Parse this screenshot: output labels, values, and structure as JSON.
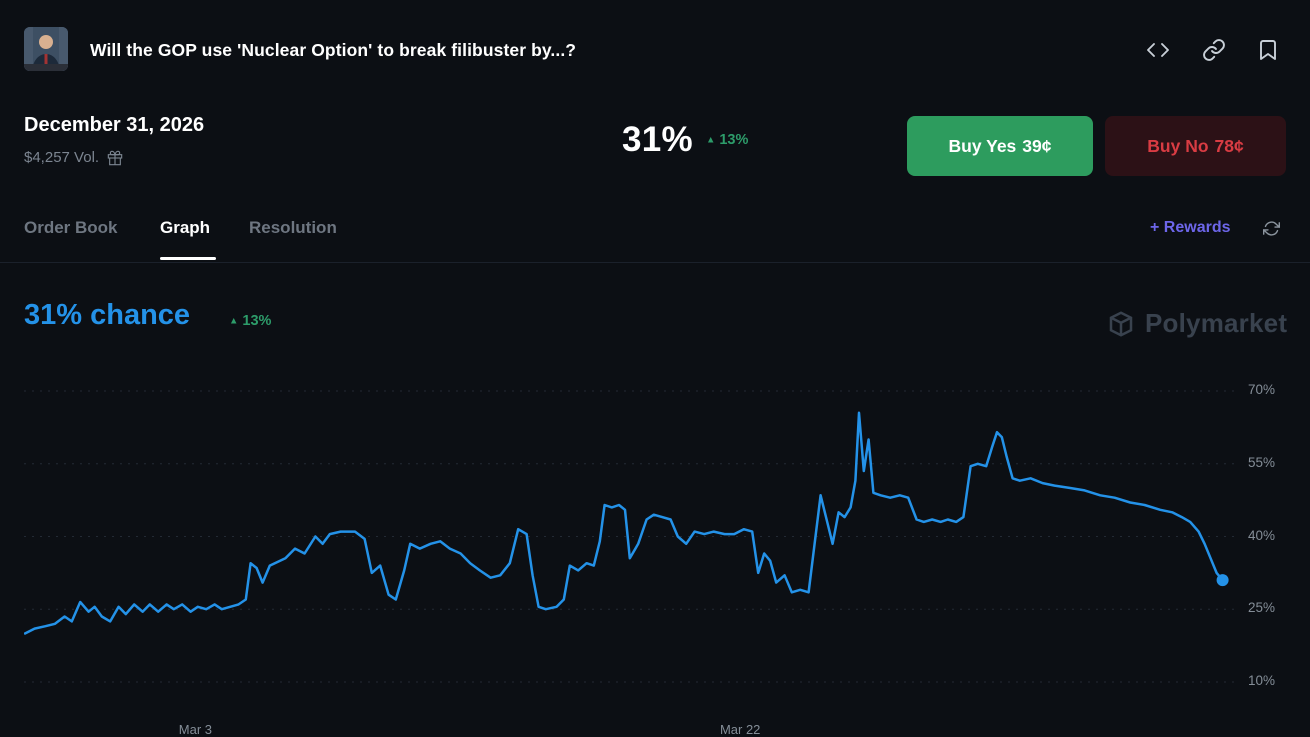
{
  "header": {
    "title": "Will the GOP use 'Nuclear Option' to break filibuster by...?",
    "icons": [
      "embed-icon",
      "copy-link-icon",
      "bookmark-icon"
    ]
  },
  "market": {
    "date": "December 31, 2026",
    "volume": "$4,257 Vol.",
    "chance": "31%",
    "change": "13%",
    "buy_yes": {
      "label": "Buy Yes",
      "price": "39¢"
    },
    "buy_no": {
      "label": "Buy No",
      "price": "78¢"
    }
  },
  "tabs": {
    "order_book": "Order Book",
    "graph": "Graph",
    "resolution": "Resolution",
    "active_tab": "Graph"
  },
  "rewards_label": "+ Rewards",
  "watermark": "Polymarket",
  "glyphs": {
    "up_arrow": "▲"
  },
  "colors": {
    "background": "#0c0f14",
    "accent_blue": "#2492e8",
    "positive_green": "#2d9c6a",
    "buy_yes_green": "#2d9c5e",
    "buy_no_red_text": "#d93c43",
    "buy_no_red_bg": "#2c1116",
    "rewards_purple": "#6d66ea",
    "muted_text": "#7c8591"
  },
  "chart_data": {
    "type": "line",
    "title": "31% chance",
    "series_name": "Yes",
    "current_value_pct": 31,
    "change_pct": 13,
    "change_direction": "up",
    "line_color": "#2492e8",
    "grid": "dotted-horizontal",
    "legend": "none",
    "ylim": [
      10,
      70
    ],
    "yticks": [
      70,
      55,
      40,
      25,
      10
    ],
    "ytick_labels": [
      "70%",
      "55%",
      "40%",
      "25%",
      "10%"
    ],
    "xticks": [
      {
        "label": "Mar 3",
        "x": 14.2
      },
      {
        "label": "Mar 22",
        "x": 59.6
      }
    ],
    "points": [
      [
        0,
        20
      ],
      [
        0.8,
        21
      ],
      [
        1.7,
        21.5
      ],
      [
        2.5,
        22
      ],
      [
        3.3,
        23.5
      ],
      [
        3.9,
        22.5
      ],
      [
        4.6,
        26.5
      ],
      [
        5.3,
        24.5
      ],
      [
        5.8,
        25.5
      ],
      [
        6.4,
        23.5
      ],
      [
        7.1,
        22.5
      ],
      [
        7.8,
        25.5
      ],
      [
        8.4,
        24
      ],
      [
        9.1,
        26
      ],
      [
        9.8,
        24.5
      ],
      [
        10.4,
        26
      ],
      [
        11.1,
        24.5
      ],
      [
        11.8,
        26
      ],
      [
        12.4,
        25
      ],
      [
        13.1,
        26
      ],
      [
        13.8,
        24.5
      ],
      [
        14.4,
        25.5
      ],
      [
        15.1,
        25
      ],
      [
        15.8,
        26
      ],
      [
        16.4,
        25
      ],
      [
        17.1,
        25.5
      ],
      [
        17.8,
        26
      ],
      [
        18.4,
        27
      ],
      [
        18.8,
        34.5
      ],
      [
        19.3,
        33.5
      ],
      [
        19.8,
        30.5
      ],
      [
        20.4,
        34
      ],
      [
        21.7,
        35.5
      ],
      [
        22.5,
        37.5
      ],
      [
        23.3,
        36.5
      ],
      [
        24.2,
        40
      ],
      [
        24.8,
        38.5
      ],
      [
        25.4,
        40.5
      ],
      [
        26.3,
        41
      ],
      [
        27.5,
        41
      ],
      [
        28.3,
        39.5
      ],
      [
        28.9,
        32.5
      ],
      [
        29.6,
        34
      ],
      [
        30.3,
        28
      ],
      [
        30.9,
        27
      ],
      [
        31.6,
        33
      ],
      [
        32.1,
        38.5
      ],
      [
        32.9,
        37.5
      ],
      [
        33.8,
        38.5
      ],
      [
        34.6,
        39
      ],
      [
        35.4,
        37.5
      ],
      [
        36.3,
        36.5
      ],
      [
        37.1,
        34.5
      ],
      [
        37.9,
        33
      ],
      [
        38.8,
        31.5
      ],
      [
        39.6,
        32
      ],
      [
        40.4,
        34.5
      ],
      [
        41.1,
        41.5
      ],
      [
        41.8,
        40.5
      ],
      [
        42.3,
        32
      ],
      [
        42.8,
        25.5
      ],
      [
        43.4,
        25
      ],
      [
        44.3,
        25.5
      ],
      [
        44.9,
        27
      ],
      [
        45.4,
        34
      ],
      [
        46.1,
        33
      ],
      [
        46.8,
        34.5
      ],
      [
        47.4,
        34
      ],
      [
        47.9,
        39
      ],
      [
        48.3,
        46.5
      ],
      [
        48.9,
        46
      ],
      [
        49.5,
        46.5
      ],
      [
        50,
        45.5
      ],
      [
        50.4,
        35.5
      ],
      [
        51.1,
        38.5
      ],
      [
        51.8,
        43.5
      ],
      [
        52.4,
        44.5
      ],
      [
        53.1,
        44
      ],
      [
        53.8,
        43.5
      ],
      [
        54.4,
        40
      ],
      [
        55.1,
        38.5
      ],
      [
        55.8,
        41
      ],
      [
        56.6,
        40.5
      ],
      [
        57.4,
        41
      ],
      [
        58.3,
        40.5
      ],
      [
        59.1,
        40.5
      ],
      [
        59.9,
        41.5
      ],
      [
        60.6,
        41
      ],
      [
        61.1,
        32.5
      ],
      [
        61.6,
        36.5
      ],
      [
        62.1,
        35
      ],
      [
        62.6,
        30.5
      ],
      [
        63.3,
        32
      ],
      [
        63.9,
        28.5
      ],
      [
        64.6,
        29
      ],
      [
        65.3,
        28.5
      ],
      [
        65.8,
        38.5
      ],
      [
        66.3,
        48.5
      ],
      [
        66.8,
        43.5
      ],
      [
        67.3,
        38.5
      ],
      [
        67.8,
        45
      ],
      [
        68.3,
        44
      ],
      [
        68.8,
        46
      ],
      [
        69.2,
        51.5
      ],
      [
        69.5,
        65.5
      ],
      [
        69.9,
        53.5
      ],
      [
        70.3,
        60
      ],
      [
        70.7,
        49
      ],
      [
        71.3,
        48.5
      ],
      [
        72.1,
        48
      ],
      [
        72.9,
        48.5
      ],
      [
        73.6,
        48
      ],
      [
        74.3,
        43.5
      ],
      [
        74.9,
        43
      ],
      [
        75.6,
        43.5
      ],
      [
        76.3,
        43
      ],
      [
        76.9,
        43.5
      ],
      [
        77.6,
        43
      ],
      [
        78.2,
        44
      ],
      [
        78.8,
        54.5
      ],
      [
        79.4,
        55
      ],
      [
        80.1,
        54.5
      ],
      [
        80.6,
        58.5
      ],
      [
        81,
        61.5
      ],
      [
        81.4,
        60.5
      ],
      [
        81.8,
        56.5
      ],
      [
        82.3,
        52
      ],
      [
        82.9,
        51.5
      ],
      [
        83.8,
        52
      ],
      [
        84.8,
        51
      ],
      [
        85.8,
        50.5
      ],
      [
        87.1,
        50
      ],
      [
        88.3,
        49.5
      ],
      [
        89.6,
        48.5
      ],
      [
        90.8,
        48
      ],
      [
        92.1,
        47
      ],
      [
        93.3,
        46.5
      ],
      [
        94.6,
        45.5
      ],
      [
        95.6,
        45
      ],
      [
        96.4,
        44
      ],
      [
        97.1,
        43
      ],
      [
        97.8,
        41
      ],
      [
        98.3,
        38.5
      ],
      [
        98.8,
        35.5
      ],
      [
        99.3,
        32.5
      ],
      [
        99.8,
        31
      ]
    ]
  }
}
